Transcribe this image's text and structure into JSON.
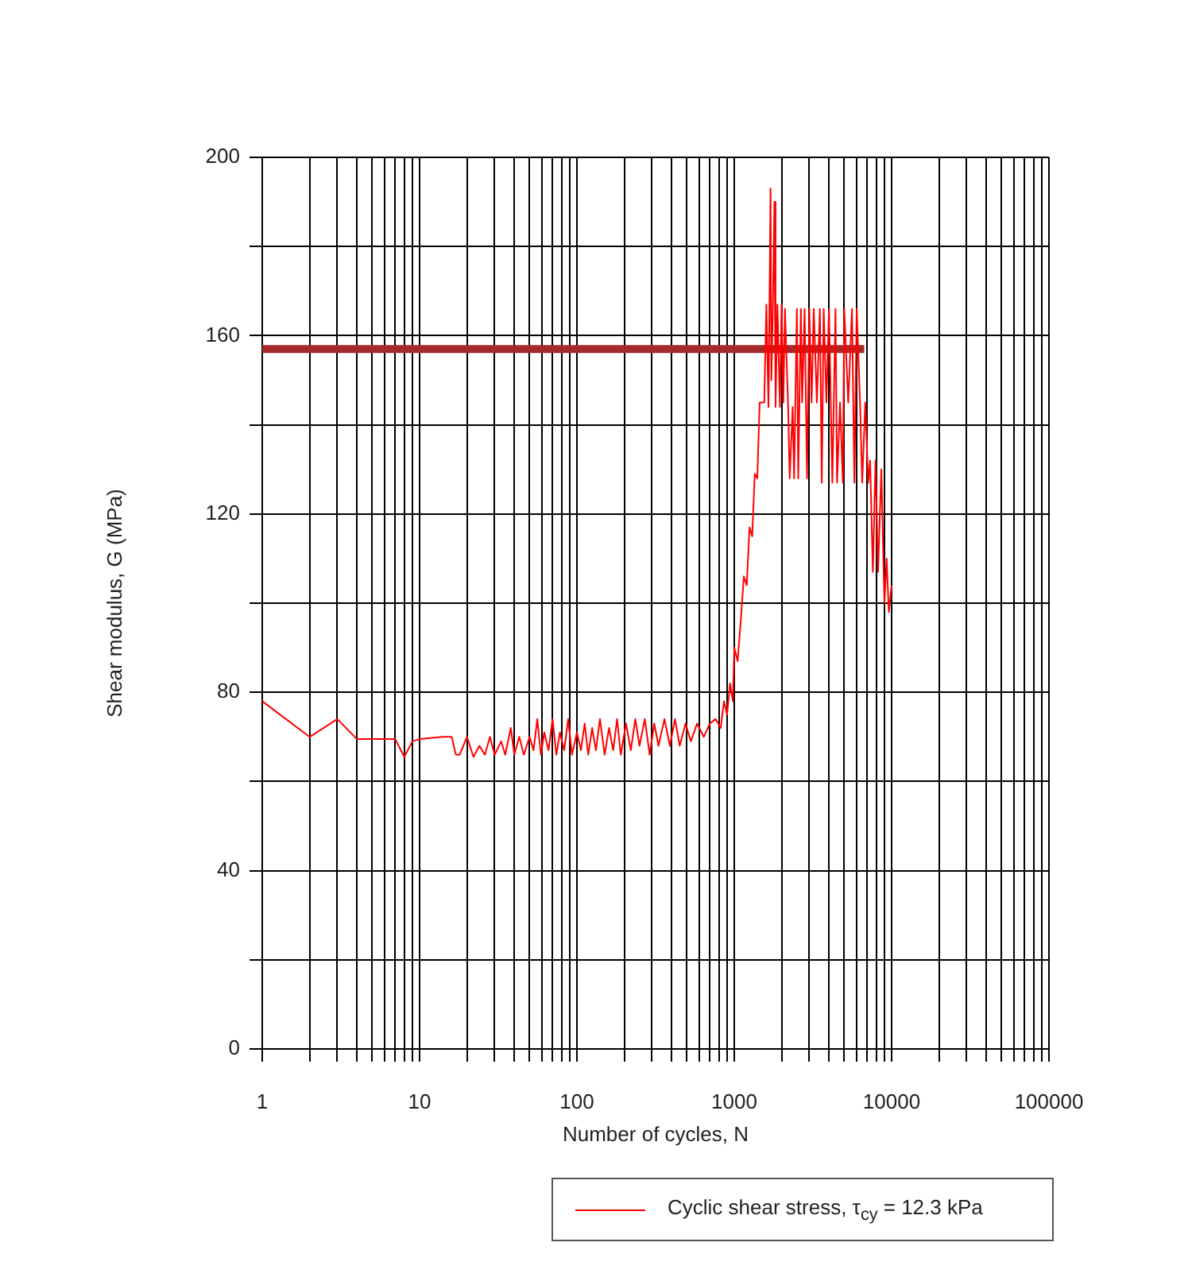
{
  "chart_data": {
    "type": "line",
    "xlabel": "Number of cycles, N",
    "ylabel": "Shear modulus, G (MPa)",
    "log": "x",
    "grid": true,
    "legend": "bottom",
    "marker": "none",
    "line_style": "solid",
    "xlim": [
      1,
      100000
    ],
    "xticks": [
      1,
      {
        "value": 2,
        "label": null
      },
      {
        "value": 3,
        "label": null
      },
      {
        "value": 4,
        "label": null
      },
      {
        "value": 5,
        "label": null
      },
      {
        "value": 6,
        "label": null
      },
      {
        "value": 7,
        "label": null
      },
      {
        "value": 8,
        "label": null
      },
      {
        "value": 9,
        "label": null
      },
      10,
      {
        "value": 20,
        "label": null
      },
      {
        "value": 30,
        "label": null
      },
      {
        "value": 40,
        "label": null
      },
      {
        "value": 50,
        "label": null
      },
      {
        "value": 60,
        "label": null
      },
      {
        "value": 70,
        "label": null
      },
      {
        "value": 80,
        "label": null
      },
      {
        "value": 90,
        "label": null
      },
      100,
      {
        "value": 200,
        "label": null
      },
      {
        "value": 300,
        "label": null
      },
      {
        "value": 400,
        "label": null
      },
      {
        "value": 500,
        "label": null
      },
      {
        "value": 600,
        "label": null
      },
      {
        "value": 700,
        "label": null
      },
      {
        "value": 800,
        "label": null
      },
      {
        "value": 900,
        "label": null
      },
      1000,
      {
        "value": 2000,
        "label": null
      },
      {
        "value": 3000,
        "label": null
      },
      {
        "value": 4000,
        "label": null
      },
      {
        "value": 5000,
        "label": null
      },
      {
        "value": 6000,
        "label": null
      },
      {
        "value": 7000,
        "label": null
      },
      {
        "value": 8000,
        "label": null
      },
      {
        "value": 9000,
        "label": null
      },
      10000,
      {
        "value": 20000,
        "label": null
      },
      {
        "value": 30000,
        "label": null
      },
      {
        "value": 40000,
        "label": null
      },
      {
        "value": 50000,
        "label": null
      },
      {
        "value": 60000,
        "label": null
      },
      {
        "value": 70000,
        "label": null
      },
      {
        "value": 80000,
        "label": null
      },
      {
        "value": 90000,
        "label": null
      },
      100000
    ],
    "ylim": [
      0,
      200
    ],
    "yticks": [
      0,
      {
        "value": 20,
        "label": null
      },
      40,
      {
        "value": 60,
        "label": null
      },
      80,
      {
        "value": 100,
        "label": null
      },
      120,
      {
        "value": 140,
        "label": null
      },
      160,
      {
        "value": 180,
        "label": null
      },
      200
    ],
    "series": [
      {
        "name": "Cyclic shear stress, τ$_{cy}$ = 12.3 kPa",
        "color": "#ff0000",
        "x": [
          1,
          2,
          3,
          4,
          7,
          8,
          9,
          10,
          14,
          16,
          17,
          18,
          20,
          22,
          24,
          26,
          28,
          30,
          33,
          35,
          38,
          40,
          43,
          46,
          50,
          53,
          56,
          59,
          62,
          66,
          70,
          74,
          78,
          83,
          88,
          93,
          100,
          106,
          112,
          118,
          125,
          132,
          140,
          150,
          160,
          170,
          180,
          190,
          205,
          220,
          235,
          250,
          270,
          290,
          310,
          330,
          360,
          390,
          420,
          450,
          490,
          530,
          580,
          640,
          700,
          760,
          820,
          860,
          900,
          940,
          980,
          1000,
          1050,
          1100,
          1150,
          1200,
          1250,
          1300,
          1350,
          1400,
          1450,
          1550,
          1600,
          1650,
          1700,
          1720,
          1760,
          1800,
          1830,
          1880,
          1950,
          2000,
          2050,
          2100,
          2200,
          2250,
          2350,
          2400,
          2500,
          2550,
          2650,
          2700,
          2800,
          2900,
          3000,
          3100,
          3200,
          3350,
          3500,
          3600,
          3700,
          3850,
          4000,
          4200,
          4400,
          4500,
          4700,
          4900,
          5000,
          5300,
          5600,
          5800,
          6000,
          6300,
          6500,
          6800,
          7100,
          7300,
          7600,
          7900,
          8200,
          8600,
          9000,
          9300,
          9600,
          10000
        ],
        "values": [
          78,
          70,
          74,
          69.5,
          69.5,
          65.5,
          69,
          69.5,
          70,
          70,
          66,
          66,
          70,
          65.5,
          68,
          66,
          70,
          66,
          69,
          66,
          72,
          66,
          70,
          66,
          70,
          67,
          74,
          66,
          71,
          67,
          74,
          66,
          71,
          67,
          74,
          66,
          71,
          67,
          73,
          66,
          72,
          67,
          74,
          66,
          72,
          67,
          74,
          66,
          73,
          67,
          74,
          68,
          74,
          66,
          73,
          68,
          74,
          68,
          74,
          68,
          73,
          69,
          73,
          70,
          73,
          74,
          72,
          78,
          75,
          82,
          78,
          90,
          87,
          96,
          106,
          104,
          117,
          115,
          129,
          128,
          145,
          145,
          167,
          144,
          193,
          150,
          167,
          190,
          144,
          167,
          144,
          167,
          145,
          166,
          144,
          128,
          144,
          128,
          166,
          128,
          166,
          145,
          166,
          128,
          166,
          145,
          166,
          145,
          166,
          127,
          166,
          145,
          166,
          127,
          166,
          127,
          145,
          127,
          166,
          145,
          166,
          127,
          166,
          145,
          127,
          145,
          127,
          132,
          107,
          132,
          107,
          130,
          100,
          110,
          98,
          104
        ]
      },
      {
        "color": "#a52a2a",
        "x": [
          1,
          6700
        ],
        "values": [
          157,
          157
        ]
      }
    ]
  }
}
